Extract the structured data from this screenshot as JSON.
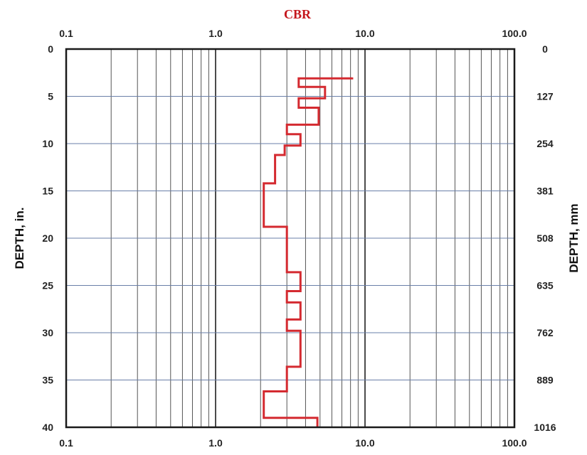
{
  "colors": {
    "profile": "#d42a30",
    "title": "#c4161c",
    "grid_major": "#1e1e1e",
    "grid_minor": "#555555",
    "grid_h": "#6a7fa8"
  },
  "chart_data": {
    "type": "line",
    "title": "CBR",
    "xlabel": "",
    "ylabel": "DEPTH, in.",
    "ylabel_right": "DEPTH, mm",
    "x_scale": "log",
    "xlim": [
      0.1,
      100
    ],
    "ylim": [
      0,
      40
    ],
    "y_inverted": true,
    "grid": true,
    "x_tick_labels": [
      "0.1",
      "1.0",
      "10.0",
      "100.0"
    ],
    "y_tick_labels": [
      "0",
      "5",
      "10",
      "15",
      "20",
      "25",
      "30",
      "35",
      "40"
    ],
    "y_right_tick_labels": [
      "0",
      "127",
      "254",
      "381",
      "508",
      "635",
      "762",
      "889",
      "1016"
    ],
    "series": [
      {
        "name": "",
        "x": [
          8.2,
          8.2,
          3.6,
          3.6,
          5.4,
          5.4,
          3.6,
          3.6,
          4.9,
          4.9,
          3.0,
          3.0,
          3.7,
          3.7,
          2.9,
          2.9,
          2.5,
          2.5,
          2.1,
          2.1,
          3.0,
          3.0,
          3.7,
          3.7,
          3.0,
          3.0,
          3.7,
          3.7,
          3.0,
          3.0,
          3.7,
          3.7,
          3.0,
          3.0,
          2.1,
          2.1,
          4.8,
          4.8
        ],
        "y": [
          3.0,
          3.1,
          3.1,
          4.0,
          4.0,
          5.2,
          5.2,
          6.2,
          6.2,
          8.0,
          8.0,
          9.0,
          9.0,
          10.2,
          10.2,
          11.2,
          11.2,
          14.2,
          14.2,
          18.8,
          18.8,
          23.6,
          23.6,
          25.6,
          25.6,
          26.8,
          26.8,
          28.6,
          28.6,
          29.8,
          29.8,
          33.6,
          33.6,
          36.2,
          36.2,
          39.0,
          39.0,
          40.0
        ]
      }
    ]
  }
}
